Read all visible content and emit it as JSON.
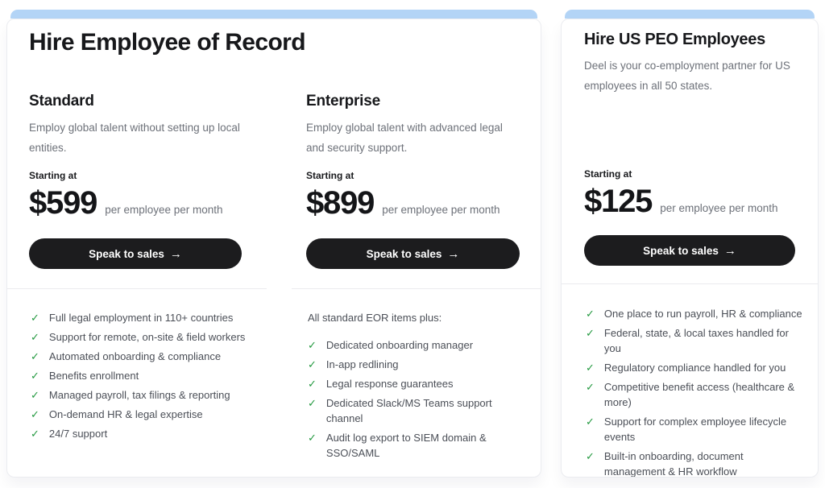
{
  "icons": {
    "check": "✓",
    "arrow": "→"
  },
  "colors": {
    "top_bar_accent": "#b3d4f6",
    "button_background": "#1c1c1e",
    "button_text": "#ffffff",
    "check_green": "#23993f",
    "heading_text": "#17181b",
    "muted_text": "#6d7179"
  },
  "card_eor": {
    "title": "Hire Employee of Record",
    "standard": {
      "name": "Standard",
      "description": "Employ global talent without setting up local entities.",
      "starting_at": "Starting at",
      "price": "$599",
      "price_suffix": "per employee per month",
      "cta": "Speak to sales",
      "features": [
        "Full legal employment in 110+ countries",
        "Support for remote, on-site & field workers",
        "Automated onboarding & compliance",
        "Benefits enrollment",
        "Managed payroll, tax filings & reporting",
        "On-demand HR & legal expertise",
        "24/7 support"
      ]
    },
    "enterprise": {
      "name": "Enterprise",
      "description": "Employ global talent with advanced legal and security support.",
      "starting_at": "Starting at",
      "price": "$899",
      "price_suffix": "per employee per month",
      "cta": "Speak to sales",
      "features_intro": "All standard EOR items plus:",
      "features": [
        "Dedicated onboarding manager",
        "In-app redlining",
        "Legal response guarantees",
        "Dedicated Slack/MS Teams support channel",
        "Audit log export to SIEM domain & SSO/SAML"
      ]
    }
  },
  "card_peo": {
    "title": "Hire US PEO Employees",
    "description": "Deel is your co-employment partner for US employees in all 50 states.",
    "starting_at": "Starting at",
    "price": "$125",
    "price_suffix": "per employee per month",
    "cta": "Speak to sales",
    "features": [
      "One place to run payroll, HR & compliance",
      "Federal, state, & local taxes handled for you",
      "Regulatory compliance handled for you",
      "Competitive benefit access (healthcare & more)",
      "Support for complex employee lifecycle events",
      "Built-in onboarding, document management & HR workflow"
    ]
  }
}
